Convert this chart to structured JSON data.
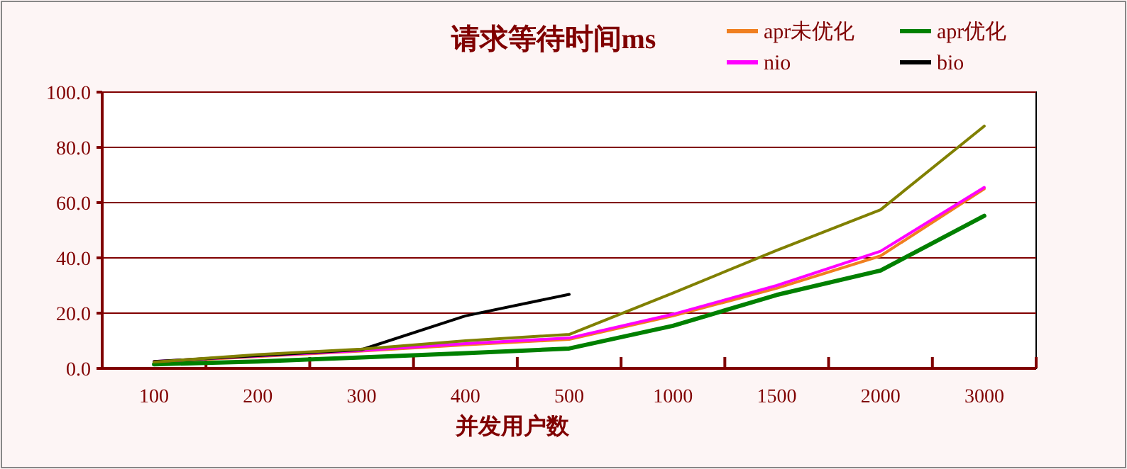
{
  "chart_data": {
    "type": "line",
    "title": "请求等待时间ms",
    "xlabel": "并发用户数",
    "categories": [
      "100",
      "200",
      "300",
      "400",
      "500",
      "1000",
      "1500",
      "2000",
      "3000"
    ],
    "ylim": [
      0,
      100
    ],
    "yticks": [
      {
        "value": 0,
        "label": "0.0"
      },
      {
        "value": 20,
        "label": "20.0"
      },
      {
        "value": 40,
        "label": "40.0"
      },
      {
        "value": 60,
        "label": "60.0"
      },
      {
        "value": 80,
        "label": "80.0"
      },
      {
        "value": 100,
        "label": "100.0"
      }
    ],
    "grid": "y",
    "legend": "top right",
    "marker": "none",
    "series": [
      {
        "name": "apr未优化",
        "color": "#f07f20",
        "values": [
          2.3,
          4.3,
          6.3,
          8.5,
          10.5,
          19,
          29,
          40.7,
          65
        ]
      },
      {
        "name": "apr优化",
        "color": "#008000",
        "values": [
          1.5,
          2.5,
          4,
          5.5,
          7.2,
          15.4,
          26.6,
          35.4,
          55.2
        ]
      },
      {
        "name": "nio",
        "color": "#ff00ff",
        "values": [
          2.5,
          4.5,
          6.5,
          9,
          11,
          19.6,
          30,
          42.4,
          65.5
        ]
      },
      {
        "name": "bio",
        "color": "#000000",
        "values": [
          2.5,
          4.6,
          6.8,
          19,
          26.8,
          null,
          null,
          null,
          null
        ]
      },
      {
        "color": "#808000",
        "values": [
          2.3,
          5,
          7,
          10,
          12.3,
          27.3,
          42.7,
          57.4,
          87.7
        ]
      }
    ]
  }
}
